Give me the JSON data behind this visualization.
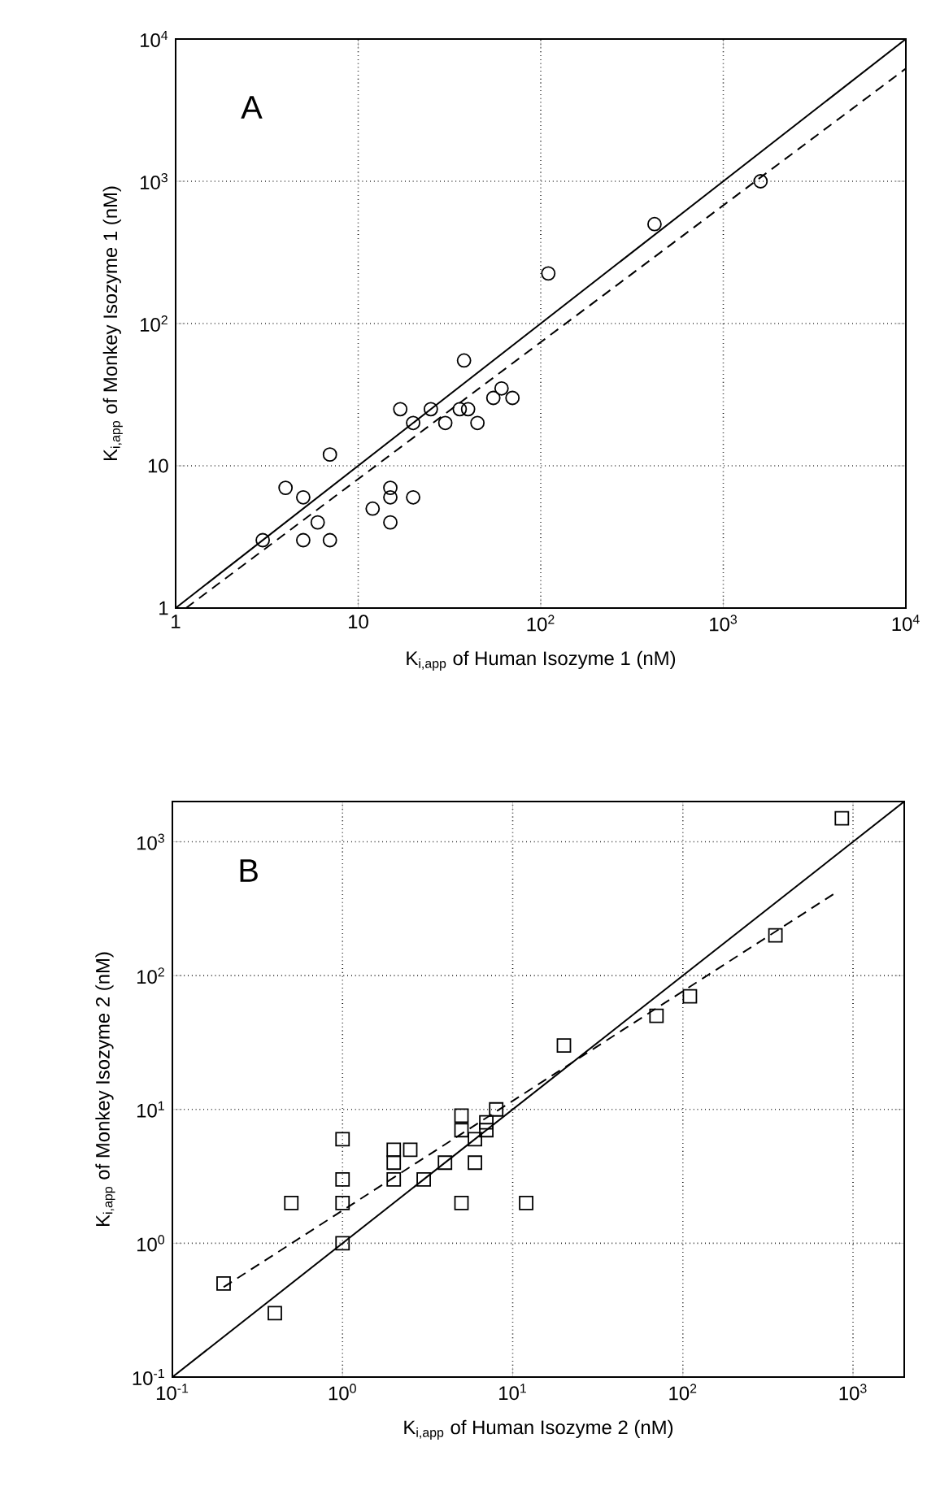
{
  "chart_data": [
    {
      "type": "scatter",
      "xlabel": "K$_{i,app}$ of Human Isozyme 1 (nM)",
      "ylabel": "K$_{i,app}$ of Monkey Isozyme 1 (nM)",
      "annotations": [
        "A"
      ],
      "log": "xy",
      "grid": true,
      "xlim": [
        1,
        10000
      ],
      "ylim": [
        1,
        10000
      ],
      "xticks": [
        1,
        10,
        {
          "value": 100,
          "label": "10$^{2}$"
        },
        {
          "value": 1000,
          "label": "10$^{3}$"
        },
        {
          "value": 10000,
          "label": "10$^{4}$"
        }
      ],
      "yticks": [
        1,
        10,
        {
          "value": 100,
          "label": "10$^{2}$"
        },
        {
          "value": 1000,
          "label": "10$^{3}$"
        },
        {
          "value": 10000,
          "label": "10$^{4}$"
        }
      ],
      "series": [
        {
          "marker": "circle",
          "color": "#000000",
          "x": [
            3,
            4,
            5,
            5,
            6,
            7,
            7,
            12,
            15,
            15,
            15,
            20,
            17,
            20,
            25,
            30,
            36,
            38,
            40,
            45,
            55,
            61,
            70,
            110,
            420,
            1600
          ],
          "values": [
            3,
            7,
            6,
            3,
            4,
            12,
            3,
            5,
            7,
            6,
            4,
            6,
            25,
            20,
            25,
            20,
            25,
            55,
            25,
            20,
            30,
            35,
            30,
            225,
            500,
            1000
          ]
        },
        {
          "type": "line",
          "line_style": "solid",
          "color": "#000000",
          "x": [
            1,
            10000
          ],
          "values": [
            1,
            10000
          ]
        },
        {
          "type": "line",
          "line_style": "dashed",
          "color": "#000000",
          "x": [
            1.14,
            10000
          ],
          "values": [
            1,
            6200
          ]
        }
      ]
    },
    {
      "type": "scatter",
      "xlabel": "K$_{i,app}$ of Human Isozyme 2 (nM)",
      "ylabel": "K$_{i,app}$ of Monkey Isozyme 2 (nM)",
      "annotations": [
        "B"
      ],
      "log": "xy",
      "grid": true,
      "xlim": [
        0.1,
        2000
      ],
      "ylim": [
        0.1,
        2000
      ],
      "xticks": [
        {
          "value": 0.1,
          "label": "10$^{-1}$"
        },
        {
          "value": 1,
          "label": "10$^{0}$"
        },
        {
          "value": 10,
          "label": "10$^{1}$"
        },
        {
          "value": 100,
          "label": "10$^{2}$"
        },
        {
          "value": 1000,
          "label": "10$^{3}$"
        }
      ],
      "yticks": [
        {
          "value": 0.1,
          "label": "10$^{-1}$"
        },
        {
          "value": 1,
          "label": "10$^{0}$"
        },
        {
          "value": 10,
          "label": "10$^{1}$"
        },
        {
          "value": 100,
          "label": "10$^{2}$"
        },
        {
          "value": 1000,
          "label": "10$^{3}$"
        }
      ],
      "series": [
        {
          "marker": "square",
          "color": "#000000",
          "x": [
            0.2,
            0.4,
            0.5,
            1,
            1,
            1,
            1,
            2,
            2,
            2,
            2.5,
            3,
            4,
            5,
            5,
            5,
            6,
            6,
            7,
            7,
            8,
            12,
            20,
            70,
            110,
            350,
            860
          ],
          "values": [
            0.5,
            0.3,
            2,
            1,
            2,
            3,
            6,
            3,
            4,
            5,
            5,
            3,
            4,
            2,
            9,
            7,
            4,
            6,
            7,
            8,
            10,
            2,
            30,
            50,
            70,
            200,
            1500
          ]
        },
        {
          "type": "line",
          "line_style": "solid",
          "color": "#000000",
          "x": [
            0.1,
            2000
          ],
          "values": [
            0.1,
            2000
          ]
        },
        {
          "type": "line",
          "line_style": "dashed",
          "color": "#000000",
          "x": [
            0.2,
            800
          ],
          "values": [
            0.47,
            420
          ]
        }
      ]
    }
  ]
}
